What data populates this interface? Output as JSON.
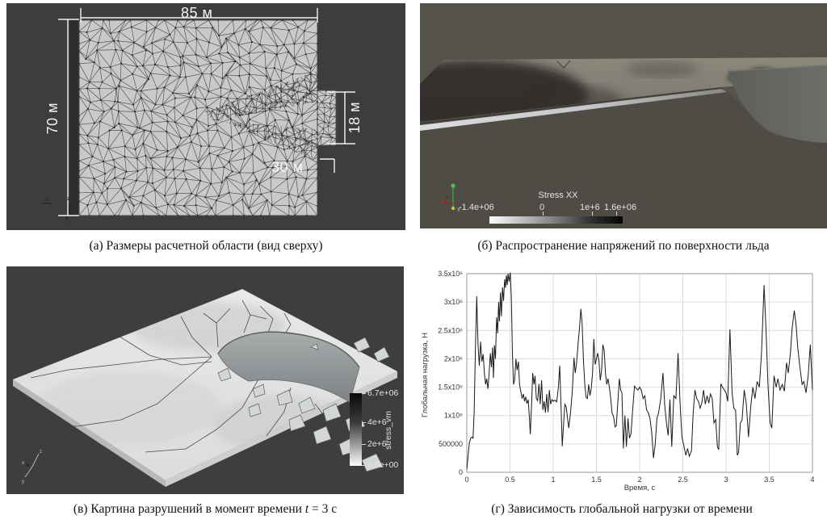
{
  "colors": {
    "panel_a_bg": "#3d3d3d",
    "panel_b_bg": "#55524b",
    "panel_v_bg": "#3e3e3e",
    "mesh_fill": "#c9c9c9",
    "plate_fill": "#e3e3e3",
    "series_line": "#1a1a1a"
  },
  "panel_a": {
    "caption": "(а) Размеры расчетной области (вид сверху)",
    "dim_top": "85 м",
    "dim_left": "70 м",
    "dim_right": "18 м",
    "dim_notch": "30 м",
    "axis": {
      "x": "x",
      "y": "y",
      "z": "z"
    }
  },
  "panel_b": {
    "caption": "(б) Распространение напряжений по поверхности льда",
    "colorbar": {
      "title": "Stress XX",
      "labels": [
        "-1.4e+06",
        "0",
        "1e+6",
        "1.6e+06"
      ]
    },
    "axis": {
      "x": "X",
      "y": "Y"
    }
  },
  "panel_v": {
    "caption_pre": "(в) Картина разрушений в момент времени ",
    "caption_var": "t",
    "caption_post": " = 3 с",
    "colorbar": {
      "title": "stress_vm",
      "labels": [
        "6.7e+06",
        "4e+6",
        "2e+6",
        "0.0e+00"
      ]
    },
    "axis": {
      "x": "x",
      "y": "y",
      "z": "z"
    }
  },
  "panel_g": {
    "caption": "(г) Зависимость глобальной нагрузки от времени"
  },
  "chart_data": {
    "type": "line",
    "title": "",
    "xlabel": "Время, с",
    "ylabel": "Глобальная нагрузка, Н",
    "xlim": [
      0,
      4
    ],
    "ylim": [
      0,
      3500000
    ],
    "grid": true,
    "legend": "none",
    "y_scale": 1000000,
    "y_unit": "N",
    "x_ticks": [
      {
        "v": 0,
        "label": "0"
      },
      {
        "v": 0.5,
        "label": "0.5"
      },
      {
        "v": 1,
        "label": "1"
      },
      {
        "v": 1.5,
        "label": "1.5"
      },
      {
        "v": 2,
        "label": "2"
      },
      {
        "v": 2.5,
        "label": "2.5"
      },
      {
        "v": 3,
        "label": "3"
      },
      {
        "v": 3.5,
        "label": "3.5"
      },
      {
        "v": 4,
        "label": "4"
      }
    ],
    "y_ticks": [
      {
        "v": 0,
        "label": "0"
      },
      {
        "v": 500000,
        "label": "500000"
      },
      {
        "v": 1000000,
        "label": "1x10⁶"
      },
      {
        "v": 1500000,
        "label": "1.5x10⁶"
      },
      {
        "v": 2000000,
        "label": "2x10⁶"
      },
      {
        "v": 2500000,
        "label": "2.5x10⁶"
      },
      {
        "v": 3000000,
        "label": "3x10⁶"
      },
      {
        "v": 3500000,
        "label": "3.5x10⁶"
      }
    ],
    "points": [
      [
        0,
        0.05
      ],
      [
        0.015,
        0.3
      ],
      [
        0.03,
        0.52
      ],
      [
        0.045,
        0.6
      ],
      [
        0.06,
        0.62
      ],
      [
        0.072,
        0.6
      ],
      [
        0.085,
        1.05
      ],
      [
        0.1,
        2.2
      ],
      [
        0.115,
        3.1
      ],
      [
        0.13,
        2.25
      ],
      [
        0.145,
        1.88
      ],
      [
        0.16,
        2.3
      ],
      [
        0.175,
        1.95
      ],
      [
        0.19,
        2.08
      ],
      [
        0.205,
        1.72
      ],
      [
        0.218,
        1.55
      ],
      [
        0.23,
        1.65
      ],
      [
        0.245,
        1.47
      ],
      [
        0.26,
        1.78
      ],
      [
        0.272,
        2.1
      ],
      [
        0.285,
        1.85
      ],
      [
        0.298,
        2.2
      ],
      [
        0.308,
        1.66
      ],
      [
        0.32,
        2.24
      ],
      [
        0.332,
        2.0
      ],
      [
        0.345,
        2.73
      ],
      [
        0.357,
        2.45
      ],
      [
        0.368,
        3.0
      ],
      [
        0.378,
        2.66
      ],
      [
        0.39,
        3.17
      ],
      [
        0.4,
        2.75
      ],
      [
        0.413,
        3.26
      ],
      [
        0.425,
        3.02
      ],
      [
        0.437,
        3.4
      ],
      [
        0.448,
        3.25
      ],
      [
        0.458,
        3.47
      ],
      [
        0.468,
        3.3
      ],
      [
        0.478,
        3.5
      ],
      [
        0.49,
        3.36
      ],
      [
        0.503,
        3.52
      ],
      [
        0.515,
        3.1
      ],
      [
        0.528,
        2.1
      ],
      [
        0.54,
        1.55
      ],
      [
        0.553,
        1.62
      ],
      [
        0.568,
        2.0
      ],
      [
        0.582,
        1.8
      ],
      [
        0.597,
        1.95
      ],
      [
        0.61,
        1.55
      ],
      [
        0.625,
        1.42
      ],
      [
        0.64,
        1.3
      ],
      [
        0.655,
        1.38
      ],
      [
        0.668,
        1.25
      ],
      [
        0.682,
        1.33
      ],
      [
        0.695,
        1.21
      ],
      [
        0.71,
        1.28
      ],
      [
        0.725,
        0.95
      ],
      [
        0.735,
        0.67
      ],
      [
        0.75,
        1.22
      ],
      [
        0.763,
        1.75
      ],
      [
        0.778,
        1.55
      ],
      [
        0.79,
        1.7
      ],
      [
        0.805,
        1.3
      ],
      [
        0.82,
        1.26
      ],
      [
        0.835,
        1.56
      ],
      [
        0.85,
        1.2
      ],
      [
        0.865,
        1.62
      ],
      [
        0.88,
        1.1
      ],
      [
        0.895,
        1.25
      ],
      [
        0.91,
        1.05
      ],
      [
        0.925,
        1.38
      ],
      [
        0.94,
        1.06
      ],
      [
        0.955,
        1.45
      ],
      [
        0.97,
        1.2
      ],
      [
        0.985,
        1.28
      ],
      [
        1.0,
        1.25
      ],
      [
        1.02,
        1.27
      ],
      [
        1.04,
        1.24
      ],
      [
        1.06,
        1.5
      ],
      [
        1.075,
        1.88
      ],
      [
        1.09,
        1.2
      ],
      [
        1.105,
        0.46
      ],
      [
        1.12,
        0.85
      ],
      [
        1.135,
        1.2
      ],
      [
        1.15,
        1.15
      ],
      [
        1.165,
        0.95
      ],
      [
        1.18,
        0.78
      ],
      [
        1.2,
        1.05
      ],
      [
        1.22,
        1.4
      ],
      [
        1.24,
        2.02
      ],
      [
        1.255,
        1.75
      ],
      [
        1.27,
        1.92
      ],
      [
        1.29,
        2.3
      ],
      [
        1.305,
        2.55
      ],
      [
        1.32,
        2.88
      ],
      [
        1.335,
        2.62
      ],
      [
        1.35,
        1.95
      ],
      [
        1.365,
        1.55
      ],
      [
        1.38,
        1.32
      ],
      [
        1.395,
        1.3
      ],
      [
        1.41,
        1.55
      ],
      [
        1.425,
        1.35
      ],
      [
        1.44,
        1.48
      ],
      [
        1.455,
        1.75
      ],
      [
        1.47,
        2.35
      ],
      [
        1.485,
        1.9
      ],
      [
        1.5,
        2.0
      ],
      [
        1.515,
        2.1
      ],
      [
        1.53,
        1.95
      ],
      [
        1.545,
        1.62
      ],
      [
        1.56,
        1.8
      ],
      [
        1.575,
        2.25
      ],
      [
        1.59,
        2.15
      ],
      [
        1.605,
        1.75
      ],
      [
        1.62,
        1.55
      ],
      [
        1.635,
        1.65
      ],
      [
        1.65,
        1.5
      ],
      [
        1.665,
        1.3
      ],
      [
        1.68,
        1.05
      ],
      [
        1.7,
        0.97
      ],
      [
        1.715,
        0.8
      ],
      [
        1.73,
        0.82
      ],
      [
        1.75,
        1.3
      ],
      [
        1.765,
        1.65
      ],
      [
        1.78,
        1.45
      ],
      [
        1.795,
        1.4
      ],
      [
        1.812,
        0.42
      ],
      [
        1.83,
        1.0
      ],
      [
        1.847,
        0.45
      ],
      [
        1.865,
        0.95
      ],
      [
        1.882,
        0.6
      ],
      [
        1.9,
        0.68
      ],
      [
        1.92,
        1.1
      ],
      [
        1.94,
        1.52
      ],
      [
        1.96,
        1.48
      ],
      [
        1.98,
        1.45
      ],
      [
        2.0,
        1.5
      ],
      [
        2.02,
        1.45
      ],
      [
        2.04,
        1.3
      ],
      [
        2.06,
        1.35
      ],
      [
        2.08,
        1.1
      ],
      [
        2.1,
        1.05
      ],
      [
        2.12,
        0.95
      ],
      [
        2.14,
        0.7
      ],
      [
        2.16,
        0.25
      ],
      [
        2.18,
        0.5
      ],
      [
        2.2,
        0.95
      ],
      [
        2.22,
        1.05
      ],
      [
        2.245,
        1.3
      ],
      [
        2.27,
        1.75
      ],
      [
        2.29,
        1.2
      ],
      [
        2.31,
        0.87
      ],
      [
        2.33,
        0.65
      ],
      [
        2.35,
        1.28
      ],
      [
        2.372,
        0.45
      ],
      [
        2.395,
        1.35
      ],
      [
        2.42,
        1.3
      ],
      [
        2.445,
        2.1
      ],
      [
        2.468,
        1.2
      ],
      [
        2.49,
        0.62
      ],
      [
        2.51,
        0.48
      ],
      [
        2.535,
        0.3
      ],
      [
        2.555,
        0.42
      ],
      [
        2.575,
        0.28
      ],
      [
        2.6,
        0.38
      ],
      [
        2.62,
        1.05
      ],
      [
        2.64,
        1.45
      ],
      [
        2.66,
        1.3
      ],
      [
        2.68,
        1.25
      ],
      [
        2.7,
        1.13
      ],
      [
        2.72,
        1.22
      ],
      [
        2.74,
        1.45
      ],
      [
        2.76,
        1.2
      ],
      [
        2.78,
        1.35
      ],
      [
        2.8,
        1.22
      ],
      [
        2.82,
        1.38
      ],
      [
        2.84,
        1.3
      ],
      [
        2.86,
        0.87
      ],
      [
        2.88,
        0.93
      ],
      [
        2.9,
        0.45
      ],
      [
        2.915,
        0.4
      ],
      [
        2.94,
        1.56
      ],
      [
        2.96,
        1.5
      ],
      [
        2.98,
        1.45
      ],
      [
        3.0,
        1.4
      ],
      [
        3.02,
        1.25
      ],
      [
        3.045,
        2.52
      ],
      [
        3.07,
        1.4
      ],
      [
        3.09,
        1.13
      ],
      [
        3.11,
        1.1
      ],
      [
        3.13,
        0.3
      ],
      [
        3.145,
        0.35
      ],
      [
        3.165,
        0.87
      ],
      [
        3.185,
        0.92
      ],
      [
        3.21,
        1.45
      ],
      [
        3.235,
        1.2
      ],
      [
        3.26,
        0.62
      ],
      [
        3.285,
        1.15
      ],
      [
        3.31,
        1.5
      ],
      [
        3.335,
        1.3
      ],
      [
        3.36,
        1.6
      ],
      [
        3.385,
        1.5
      ],
      [
        3.41,
        2.1
      ],
      [
        3.44,
        3.3
      ],
      [
        3.465,
        2.4
      ],
      [
        3.485,
        1.55
      ],
      [
        3.51,
        0.87
      ],
      [
        3.53,
        0.78
      ],
      [
        3.555,
        1.7
      ],
      [
        3.58,
        1.5
      ],
      [
        3.6,
        1.65
      ],
      [
        3.625,
        1.45
      ],
      [
        3.65,
        1.55
      ],
      [
        3.675,
        1.43
      ],
      [
        3.7,
        1.93
      ],
      [
        3.72,
        1.75
      ],
      [
        3.745,
        2.1
      ],
      [
        3.765,
        2.55
      ],
      [
        3.79,
        2.85
      ],
      [
        3.81,
        2.6
      ],
      [
        3.83,
        2.2
      ],
      [
        3.855,
        1.85
      ],
      [
        3.88,
        1.55
      ],
      [
        3.9,
        1.6
      ],
      [
        3.925,
        1.4
      ],
      [
        3.95,
        1.7
      ],
      [
        3.975,
        2.25
      ],
      [
        4.0,
        1.45
      ]
    ]
  }
}
